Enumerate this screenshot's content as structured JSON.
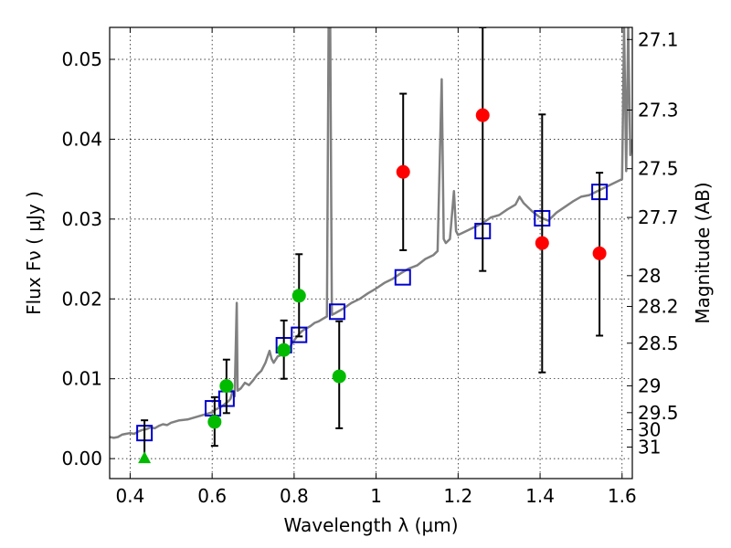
{
  "chart_data": {
    "type": "scatter",
    "title": "",
    "xlabel": "Wavelength  λ (μm)",
    "ylabel": "Flux  Fν  ( μJy )",
    "y2label": "Magnitude (AB)",
    "xlim": [
      0.35,
      1.625
    ],
    "ylim": [
      -0.0025,
      0.054
    ],
    "grid": true,
    "grid_style": "dotted",
    "x_ticks": [
      0.4,
      0.6,
      0.8,
      1.0,
      1.2,
      1.4,
      1.6
    ],
    "x_tick_labels": [
      "0.4",
      "0.6",
      "0.8",
      "1",
      "1.2",
      "1.4",
      "1.6"
    ],
    "y_ticks": [
      0.0,
      0.01,
      0.02,
      0.03,
      0.04,
      0.05
    ],
    "y_tick_labels": [
      "0.00",
      "0.01",
      "0.02",
      "0.03",
      "0.04",
      "0.05"
    ],
    "y2_ticks": [
      {
        "label": "27.1",
        "mag": 27.1
      },
      {
        "label": "27.3",
        "mag": 27.3
      },
      {
        "label": "27.5",
        "mag": 27.5
      },
      {
        "label": "27.7",
        "mag": 27.7
      },
      {
        "label": "28",
        "mag": 28.0
      },
      {
        "label": "28.2",
        "mag": 28.2
      },
      {
        "label": "28.5",
        "mag": 28.5
      },
      {
        "label": "29",
        "mag": 29.0
      },
      {
        "label": "29.5",
        "mag": 29.5
      },
      {
        "label": "30",
        "mag": 30.0
      },
      {
        "label": "31",
        "mag": 31.0
      }
    ],
    "series": [
      {
        "kind": "line",
        "color": "#808080",
        "points": [
          [
            0.35,
            0.0027
          ],
          [
            0.36,
            0.0026
          ],
          [
            0.37,
            0.0027
          ],
          [
            0.38,
            0.003
          ],
          [
            0.39,
            0.0031
          ],
          [
            0.4,
            0.0032
          ],
          [
            0.41,
            0.0031
          ],
          [
            0.42,
            0.0034
          ],
          [
            0.43,
            0.0036
          ],
          [
            0.44,
            0.0037
          ],
          [
            0.45,
            0.0039
          ],
          [
            0.46,
            0.0038
          ],
          [
            0.47,
            0.0041
          ],
          [
            0.48,
            0.0043
          ],
          [
            0.49,
            0.0042
          ],
          [
            0.5,
            0.0045
          ],
          [
            0.52,
            0.0048
          ],
          [
            0.54,
            0.0049
          ],
          [
            0.56,
            0.0052
          ],
          [
            0.58,
            0.0055
          ],
          [
            0.6,
            0.0058
          ],
          [
            0.61,
            0.0062
          ],
          [
            0.62,
            0.0064
          ],
          [
            0.63,
            0.0068
          ],
          [
            0.64,
            0.0072
          ],
          [
            0.645,
            0.0075
          ],
          [
            0.65,
            0.0085
          ],
          [
            0.655,
            0.0078
          ],
          [
            0.66,
            0.0195
          ],
          [
            0.662,
            0.0085
          ],
          [
            0.67,
            0.0088
          ],
          [
            0.68,
            0.0095
          ],
          [
            0.69,
            0.0092
          ],
          [
            0.7,
            0.0098
          ],
          [
            0.71,
            0.0105
          ],
          [
            0.72,
            0.011
          ],
          [
            0.73,
            0.012
          ],
          [
            0.74,
            0.0135
          ],
          [
            0.745,
            0.0125
          ],
          [
            0.75,
            0.012
          ],
          [
            0.76,
            0.0128
          ],
          [
            0.77,
            0.013
          ],
          [
            0.78,
            0.0136
          ],
          [
            0.79,
            0.014
          ],
          [
            0.8,
            0.0148
          ],
          [
            0.81,
            0.0155
          ],
          [
            0.82,
            0.016
          ],
          [
            0.83,
            0.0163
          ],
          [
            0.84,
            0.0166
          ],
          [
            0.85,
            0.017
          ],
          [
            0.86,
            0.0172
          ],
          [
            0.87,
            0.0175
          ],
          [
            0.88,
            0.0178
          ],
          [
            0.884,
            0.054
          ],
          [
            0.888,
            0.054
          ],
          [
            0.892,
            0.018
          ],
          [
            0.9,
            0.0182
          ],
          [
            0.92,
            0.0188
          ],
          [
            0.94,
            0.0195
          ],
          [
            0.96,
            0.02
          ],
          [
            0.98,
            0.0207
          ],
          [
            1.0,
            0.0213
          ],
          [
            1.02,
            0.022
          ],
          [
            1.04,
            0.0225
          ],
          [
            1.06,
            0.0232
          ],
          [
            1.08,
            0.0238
          ],
          [
            1.1,
            0.0242
          ],
          [
            1.12,
            0.025
          ],
          [
            1.14,
            0.0255
          ],
          [
            1.15,
            0.026
          ],
          [
            1.16,
            0.0475
          ],
          [
            1.165,
            0.0275
          ],
          [
            1.17,
            0.027
          ],
          [
            1.18,
            0.0275
          ],
          [
            1.19,
            0.0335
          ],
          [
            1.195,
            0.0285
          ],
          [
            1.2,
            0.028
          ],
          [
            1.22,
            0.0285
          ],
          [
            1.24,
            0.029
          ],
          [
            1.26,
            0.0295
          ],
          [
            1.28,
            0.0302
          ],
          [
            1.3,
            0.0305
          ],
          [
            1.32,
            0.0312
          ],
          [
            1.34,
            0.0318
          ],
          [
            1.35,
            0.0328
          ],
          [
            1.36,
            0.032
          ],
          [
            1.38,
            0.031
          ],
          [
            1.4,
            0.0302
          ],
          [
            1.42,
            0.0298
          ],
          [
            1.44,
            0.0308
          ],
          [
            1.46,
            0.0315
          ],
          [
            1.48,
            0.0322
          ],
          [
            1.5,
            0.0328
          ],
          [
            1.52,
            0.033
          ],
          [
            1.54,
            0.0335
          ],
          [
            1.56,
            0.034
          ],
          [
            1.58,
            0.0345
          ],
          [
            1.6,
            0.035
          ],
          [
            1.605,
            0.054
          ],
          [
            1.61,
            0.036
          ],
          [
            1.615,
            0.054
          ],
          [
            1.62,
            0.038
          ],
          [
            1.625,
            0.04
          ]
        ]
      },
      {
        "kind": "open-square",
        "color": "#0000cc",
        "points": [
          [
            0.435,
            0.0032
          ],
          [
            0.602,
            0.0063
          ],
          [
            0.635,
            0.0075
          ],
          [
            0.775,
            0.0142
          ],
          [
            0.812,
            0.0155
          ],
          [
            0.905,
            0.0184
          ],
          [
            1.065,
            0.0227
          ],
          [
            1.26,
            0.0285
          ],
          [
            1.405,
            0.0301
          ],
          [
            1.545,
            0.0334
          ]
        ]
      },
      {
        "kind": "filled-circle",
        "color": "#00bb00",
        "points": [
          {
            "x": 0.606,
            "y": 0.0046,
            "err": [
              0.0016,
              0.0077
            ]
          },
          {
            "x": 0.635,
            "y": 0.0091,
            "err": [
              0.0057,
              0.0124
            ]
          },
          {
            "x": 0.775,
            "y": 0.0136,
            "err": [
              0.01,
              0.0173
            ]
          },
          {
            "x": 0.812,
            "y": 0.0204,
            "err": [
              0.0153,
              0.0256
            ]
          },
          {
            "x": 0.91,
            "y": 0.0103,
            "err": [
              0.0038,
              0.0172
            ]
          }
        ]
      },
      {
        "kind": "filled-triangle",
        "color": "#00bb00",
        "points": [
          {
            "x": 0.435,
            "y": 0.0,
            "err": [
              0.0,
              0.0048
            ]
          }
        ]
      },
      {
        "kind": "filled-circle",
        "color": "#ff0000",
        "points": [
          {
            "x": 1.066,
            "y": 0.0359,
            "err": [
              0.0261,
              0.0457
            ]
          },
          {
            "x": 1.26,
            "y": 0.043,
            "err": [
              0.0235,
              0.054
            ]
          },
          {
            "x": 1.405,
            "y": 0.027,
            "err": [
              0.0108,
              0.0431
            ]
          },
          {
            "x": 1.545,
            "y": 0.0257,
            "err": [
              0.0154,
              0.0358
            ]
          }
        ]
      }
    ]
  }
}
